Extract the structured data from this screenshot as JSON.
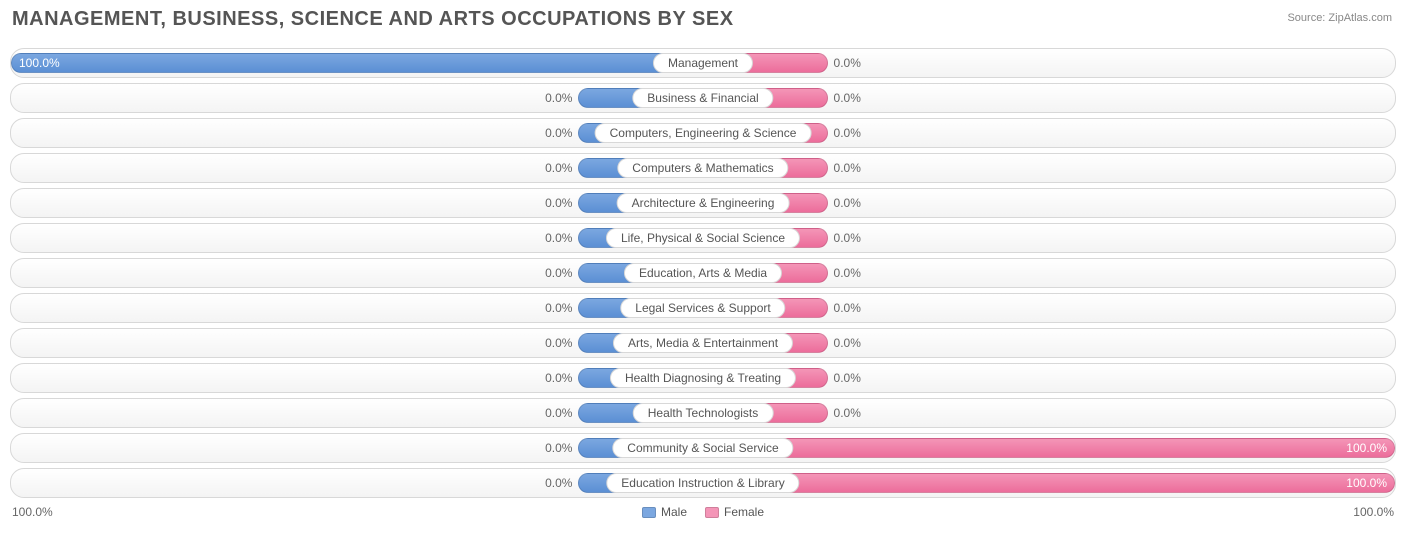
{
  "title": "MANAGEMENT, BUSINESS, SCIENCE AND ARTS OCCUPATIONS BY SEX",
  "source": "Source: ZipAtlas.com",
  "colors": {
    "male_fill": "#7ba7e0",
    "male_border": "#5b8fd4",
    "female_fill": "#f495b7",
    "female_border": "#ec6d9b",
    "text": "#666666",
    "title_text": "#555555",
    "row_border": "#d8d8d8",
    "background": "#ffffff"
  },
  "chart": {
    "type": "diverging-bar",
    "default_bar_pct": 18,
    "axis": {
      "left": "100.0%",
      "right": "100.0%"
    },
    "legend": {
      "male": "Male",
      "female": "Female"
    },
    "categories": [
      {
        "label": "Management",
        "male_val": "100.0%",
        "male_pct": 100,
        "female_val": "0.0%",
        "female_pct": 18
      },
      {
        "label": "Business & Financial",
        "male_val": "0.0%",
        "male_pct": 18,
        "female_val": "0.0%",
        "female_pct": 18
      },
      {
        "label": "Computers, Engineering & Science",
        "male_val": "0.0%",
        "male_pct": 18,
        "female_val": "0.0%",
        "female_pct": 18
      },
      {
        "label": "Computers & Mathematics",
        "male_val": "0.0%",
        "male_pct": 18,
        "female_val": "0.0%",
        "female_pct": 18
      },
      {
        "label": "Architecture & Engineering",
        "male_val": "0.0%",
        "male_pct": 18,
        "female_val": "0.0%",
        "female_pct": 18
      },
      {
        "label": "Life, Physical & Social Science",
        "male_val": "0.0%",
        "male_pct": 18,
        "female_val": "0.0%",
        "female_pct": 18
      },
      {
        "label": "Education, Arts & Media",
        "male_val": "0.0%",
        "male_pct": 18,
        "female_val": "0.0%",
        "female_pct": 18
      },
      {
        "label": "Legal Services & Support",
        "male_val": "0.0%",
        "male_pct": 18,
        "female_val": "0.0%",
        "female_pct": 18
      },
      {
        "label": "Arts, Media & Entertainment",
        "male_val": "0.0%",
        "male_pct": 18,
        "female_val": "0.0%",
        "female_pct": 18
      },
      {
        "label": "Health Diagnosing & Treating",
        "male_val": "0.0%",
        "male_pct": 18,
        "female_val": "0.0%",
        "female_pct": 18
      },
      {
        "label": "Health Technologists",
        "male_val": "0.0%",
        "male_pct": 18,
        "female_val": "0.0%",
        "female_pct": 18
      },
      {
        "label": "Community & Social Service",
        "male_val": "0.0%",
        "male_pct": 18,
        "female_val": "100.0%",
        "female_pct": 100
      },
      {
        "label": "Education Instruction & Library",
        "male_val": "0.0%",
        "male_pct": 18,
        "female_val": "100.0%",
        "female_pct": 100
      }
    ]
  }
}
